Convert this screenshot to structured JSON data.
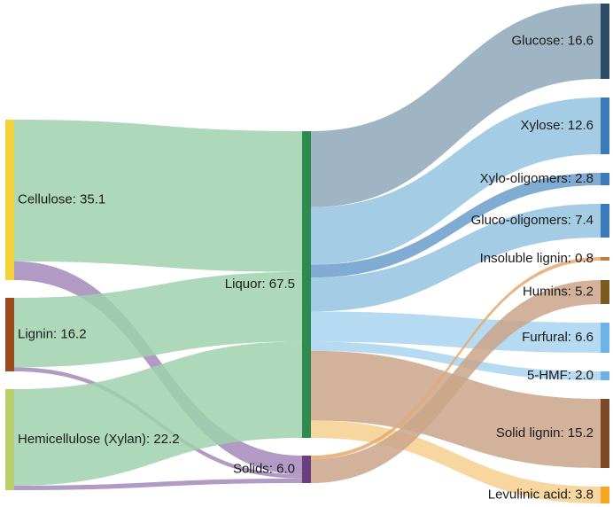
{
  "diagram": {
    "type": "sankey",
    "nodes": [
      {
        "id": "cellulose",
        "label": "Cellulose: 35.1",
        "color": "#f2d43a"
      },
      {
        "id": "lignin",
        "label": "Lignin: 16.2",
        "color": "#9b4a1c"
      },
      {
        "id": "hemicellulose",
        "label": "Hemicellulose (Xylan): 22.2",
        "color": "#b9cf6b"
      },
      {
        "id": "liquor",
        "label": "Liquor: 67.5",
        "color": "#2e8b4f"
      },
      {
        "id": "solids",
        "label": "Solids: 6.0",
        "color": "#6a3e80"
      },
      {
        "id": "glucose",
        "label": "Glucose: 16.6",
        "color": "#2c4a66"
      },
      {
        "id": "xylose",
        "label": "Xylose: 12.6",
        "color": "#3a7ab8"
      },
      {
        "id": "xylo_oligomers",
        "label": "Xylo-oligomers: 2.8",
        "color": "#3a7ab8"
      },
      {
        "id": "gluco_oligomers",
        "label": "Gluco-oligomers: 7.4",
        "color": "#3a7ab8"
      },
      {
        "id": "insoluble_lignin",
        "label": "Insoluble lignin: 0.8",
        "color": "#c0813f"
      },
      {
        "id": "humins",
        "label": "Humins: 5.2",
        "color": "#7a5a1f"
      },
      {
        "id": "furfural",
        "label": "Furfural: 6.6",
        "color": "#6db3e8"
      },
      {
        "id": "hmf",
        "label": "5-HMF: 2.0",
        "color": "#6db3e8"
      },
      {
        "id": "solid_lignin",
        "label": "Solid lignin: 15.2",
        "color": "#7a4a26"
      },
      {
        "id": "levulinic_acid",
        "label": "Levulinic acid: 3.8",
        "color": "#f5a623"
      }
    ],
    "links": [
      {
        "source": "cellulose",
        "target": "liquor",
        "value": 31.0,
        "color": "#9fd1ad"
      },
      {
        "source": "cellulose",
        "target": "solids",
        "value": 4.1,
        "color": "#a388b8"
      },
      {
        "source": "lignin",
        "target": "liquor",
        "value": 15.3,
        "color": "#9fd1ad"
      },
      {
        "source": "lignin",
        "target": "solids",
        "value": 0.9,
        "color": "#a388b8"
      },
      {
        "source": "hemicellulose",
        "target": "liquor",
        "value": 21.2,
        "color": "#9fd1ad"
      },
      {
        "source": "hemicellulose",
        "target": "solids",
        "value": 1.0,
        "color": "#a388b8"
      },
      {
        "source": "liquor",
        "target": "glucose",
        "value": 16.6,
        "color": "#8fa8b8"
      },
      {
        "source": "liquor",
        "target": "xylose",
        "value": 12.6,
        "color": "#94c4e0"
      },
      {
        "source": "liquor",
        "target": "xylo_oligomers",
        "value": 2.8,
        "color": "#6a9ccb"
      },
      {
        "source": "liquor",
        "target": "gluco_oligomers",
        "value": 7.4,
        "color": "#94c4e0"
      },
      {
        "source": "liquor",
        "target": "furfural",
        "value": 6.6,
        "color": "#a9d4f0"
      },
      {
        "source": "liquor",
        "target": "hmf",
        "value": 2.0,
        "color": "#a9d4f0"
      },
      {
        "source": "liquor",
        "target": "solid_lignin",
        "value": 15.2,
        "color": "#caa58a"
      },
      {
        "source": "liquor",
        "target": "levulinic_acid",
        "value": 3.8,
        "color": "#f7cf8f"
      },
      {
        "source": "solids",
        "target": "insoluble_lignin",
        "value": 0.8,
        "color": "#e6a870"
      },
      {
        "source": "solids",
        "target": "humins",
        "value": 5.2,
        "color": "#caa58a"
      }
    ]
  }
}
